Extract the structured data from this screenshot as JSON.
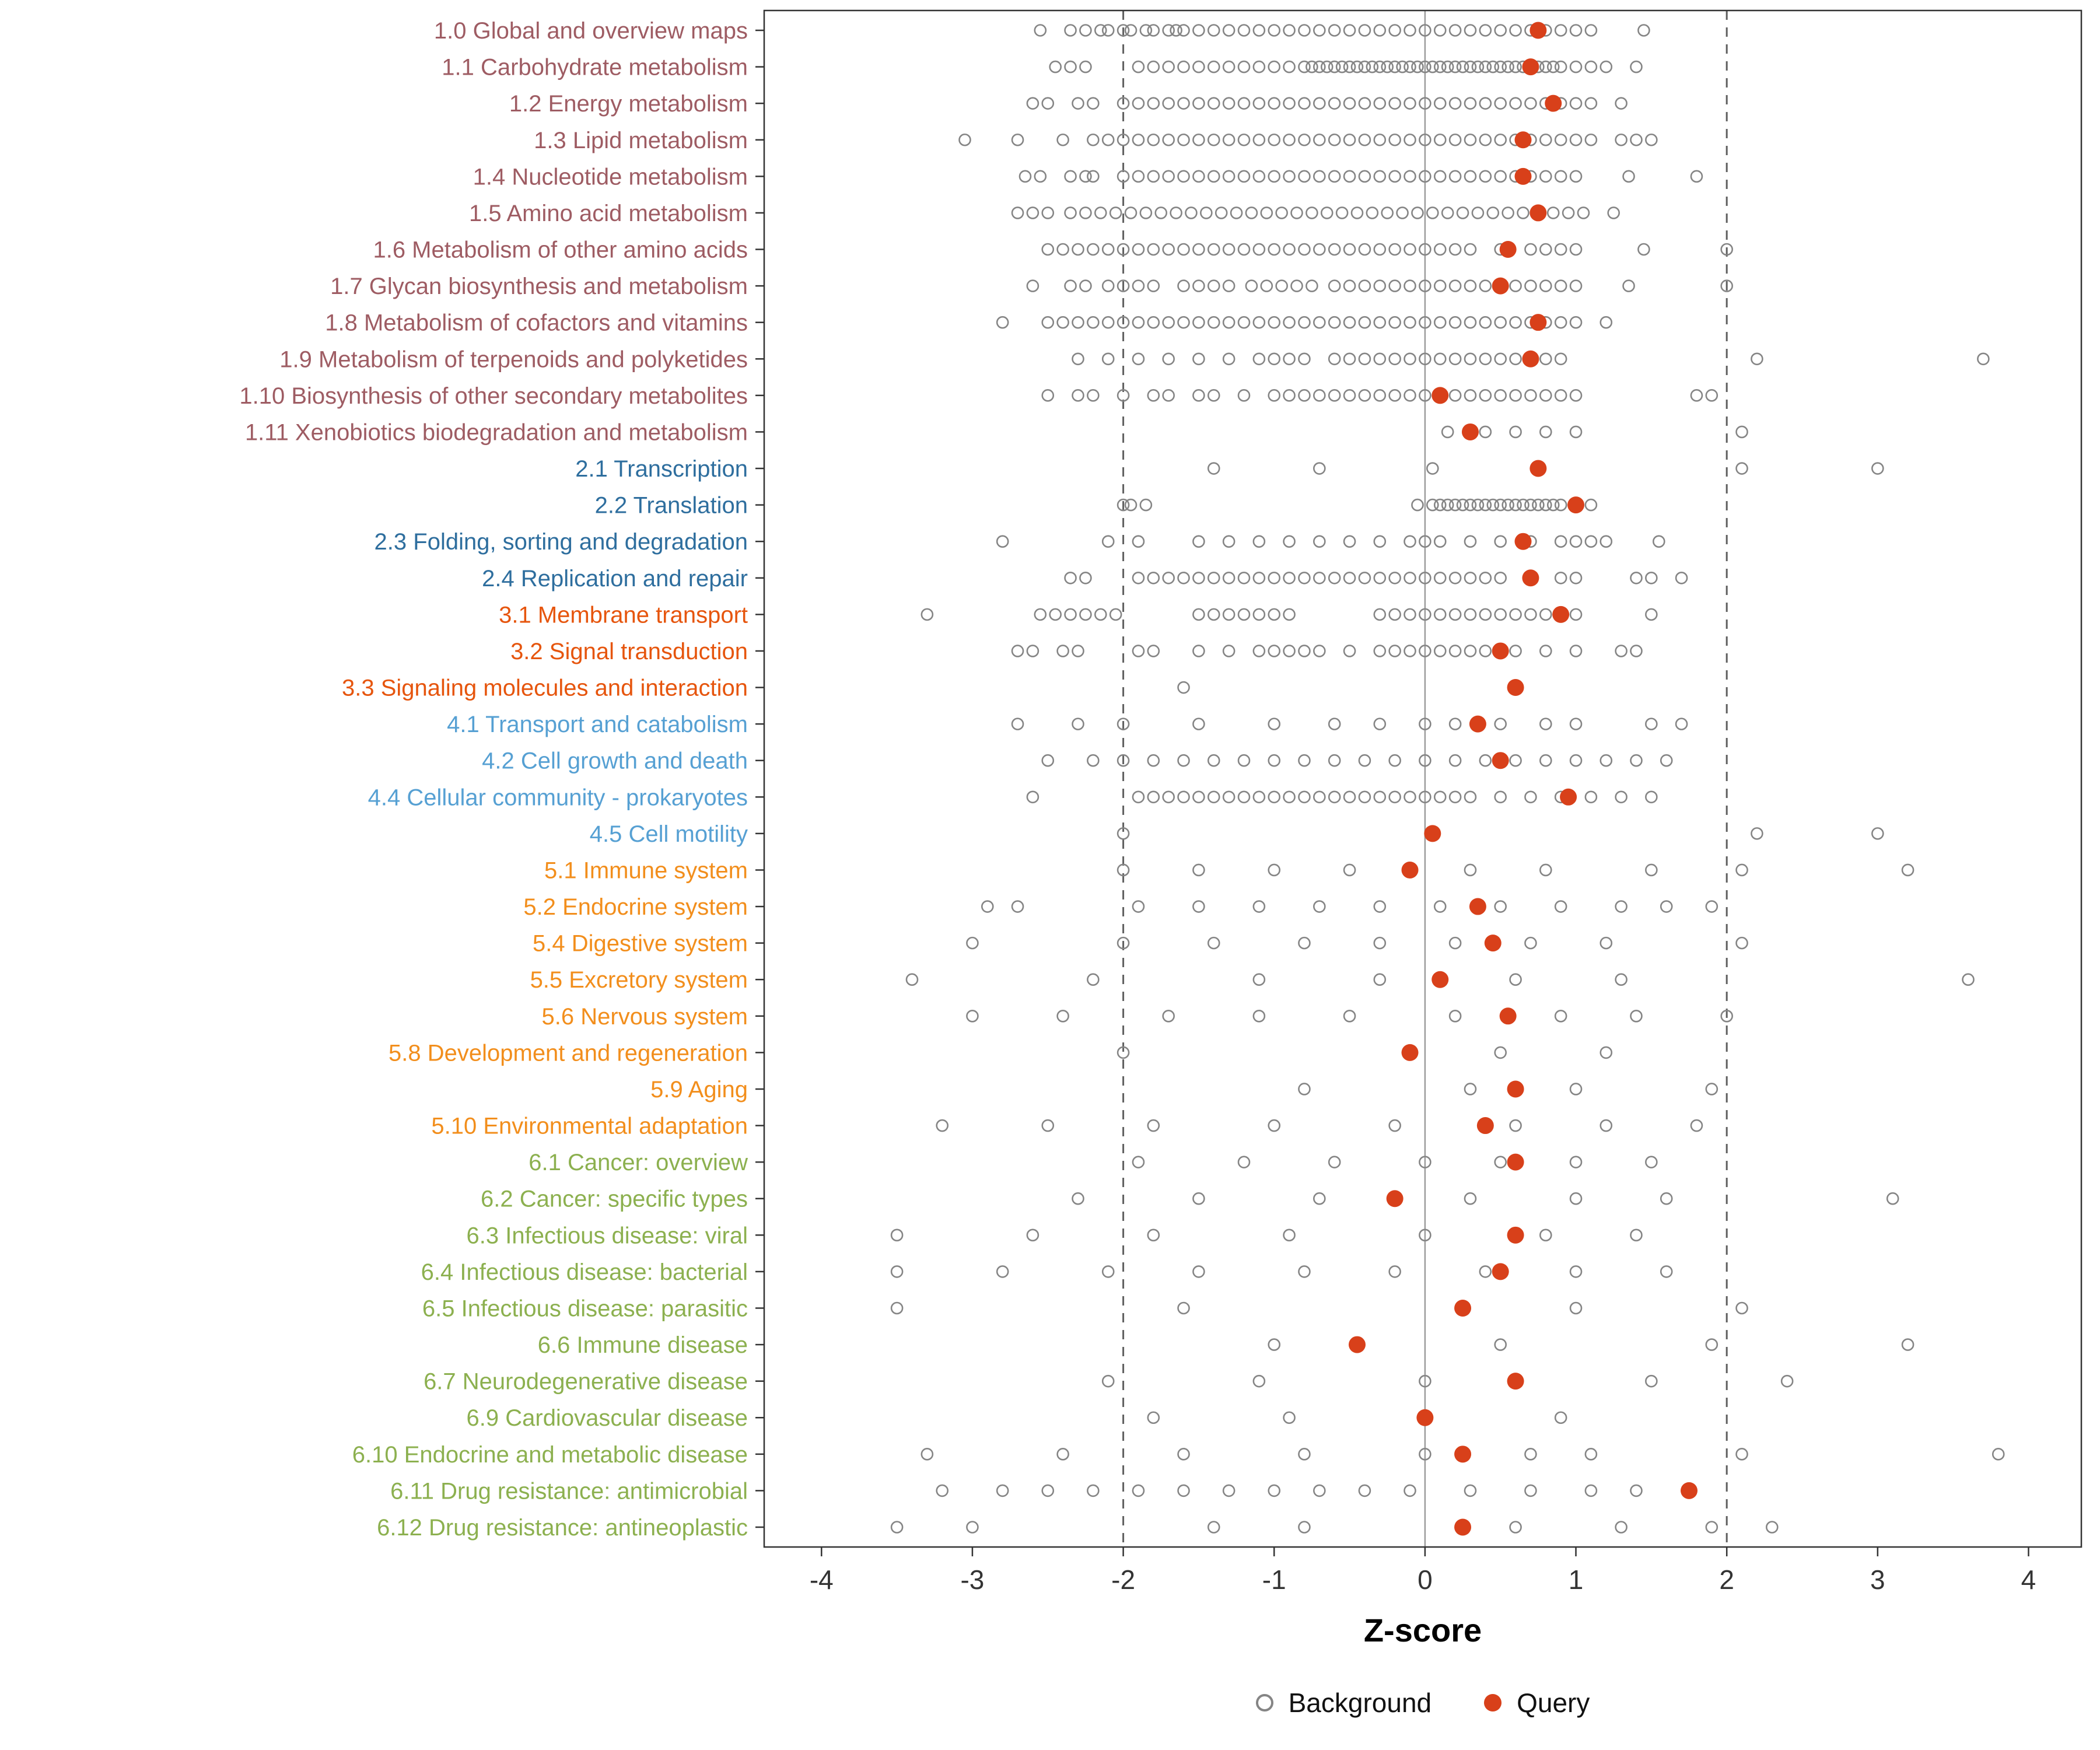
{
  "chart_data": {
    "type": "scatter",
    "orientation": "horizontal-strip",
    "xlabel": "Z-score",
    "x_ticks": [
      -4,
      -3,
      -2,
      -1,
      0,
      1,
      2,
      3,
      4
    ],
    "xlim": [
      -4.38,
      4.35
    ],
    "ref_lines": {
      "solid": 0,
      "dashed": [
        -2,
        2
      ]
    },
    "grid": false,
    "legend_position": "bottom",
    "legend": [
      {
        "label": "Background",
        "type": "open"
      },
      {
        "label": "Query",
        "type": "filled"
      }
    ],
    "colors": {
      "g1": "#9E5C63",
      "g2": "#2E6E9E",
      "g3": "#E6550D",
      "g4": "#56A0D3",
      "g5": "#F28E1C",
      "g6": "#8CB04F",
      "query_point": "#D8401A",
      "background_point": "#858585",
      "zero_line": "#9B9B9B",
      "dashed_line": "#5F5F5F",
      "panel_border": "#333333",
      "axis_text": "#333333"
    },
    "rows": [
      {
        "label": "1.0 Global and overview maps",
        "group": "g1",
        "query": 0.75,
        "background": [
          -2.55,
          -2.35,
          -2.25,
          -2.15,
          -2.1,
          -2.0,
          -1.95,
          -1.85,
          -1.8,
          -1.7,
          -1.65,
          -1.6,
          -1.5,
          -1.4,
          -1.3,
          -1.2,
          -1.1,
          -1.0,
          -0.9,
          -0.8,
          -0.7,
          -0.6,
          -0.5,
          -0.4,
          -0.3,
          -0.2,
          -0.1,
          0,
          0.1,
          0.2,
          0.3,
          0.4,
          0.5,
          0.6,
          0.7,
          0.8,
          0.9,
          1.0,
          1.1,
          1.45
        ]
      },
      {
        "label": "1.1 Carbohydrate metabolism",
        "group": "g1",
        "query": 0.7,
        "background": [
          -2.45,
          -2.35,
          -2.25,
          -1.9,
          -1.8,
          -1.7,
          -1.6,
          -1.5,
          -1.4,
          -1.3,
          -1.2,
          -1.1,
          -1.0,
          -0.9,
          -0.8,
          -0.75,
          -0.7,
          -0.65,
          -0.6,
          -0.55,
          -0.5,
          -0.45,
          -0.4,
          -0.35,
          -0.3,
          -0.25,
          -0.2,
          -0.15,
          -0.1,
          -0.05,
          0,
          0.05,
          0.1,
          0.15,
          0.2,
          0.25,
          0.3,
          0.35,
          0.4,
          0.45,
          0.5,
          0.55,
          0.6,
          0.65,
          0.75,
          0.8,
          0.85,
          0.9,
          1.0,
          1.1,
          1.2,
          1.4
        ]
      },
      {
        "label": "1.2 Energy metabolism",
        "group": "g1",
        "query": 0.85,
        "background": [
          -2.6,
          -2.5,
          -2.3,
          -2.2,
          -2.0,
          -1.9,
          -1.8,
          -1.7,
          -1.6,
          -1.5,
          -1.4,
          -1.3,
          -1.2,
          -1.1,
          -1.0,
          -0.9,
          -0.8,
          -0.7,
          -0.6,
          -0.5,
          -0.4,
          -0.3,
          -0.2,
          -0.1,
          0,
          0.1,
          0.2,
          0.3,
          0.4,
          0.5,
          0.6,
          0.7,
          0.8,
          0.9,
          1.0,
          1.1,
          1.3
        ]
      },
      {
        "label": "1.3 Lipid metabolism",
        "group": "g1",
        "query": 0.65,
        "background": [
          -3.05,
          -2.7,
          -2.4,
          -2.2,
          -2.1,
          -2.0,
          -1.9,
          -1.8,
          -1.7,
          -1.6,
          -1.5,
          -1.4,
          -1.3,
          -1.2,
          -1.1,
          -1.0,
          -0.9,
          -0.8,
          -0.7,
          -0.6,
          -0.5,
          -0.4,
          -0.3,
          -0.2,
          -0.1,
          0,
          0.1,
          0.2,
          0.3,
          0.4,
          0.5,
          0.6,
          0.7,
          0.8,
          0.9,
          1.0,
          1.1,
          1.3,
          1.4,
          1.5
        ]
      },
      {
        "label": "1.4 Nucleotide metabolism",
        "group": "g1",
        "query": 0.65,
        "background": [
          -2.65,
          -2.55,
          -2.35,
          -2.25,
          -2.2,
          -2.0,
          -1.9,
          -1.8,
          -1.7,
          -1.6,
          -1.5,
          -1.4,
          -1.3,
          -1.2,
          -1.1,
          -1.0,
          -0.9,
          -0.8,
          -0.7,
          -0.6,
          -0.5,
          -0.4,
          -0.3,
          -0.2,
          -0.1,
          0,
          0.1,
          0.2,
          0.3,
          0.4,
          0.5,
          0.6,
          0.7,
          0.8,
          0.9,
          1.0,
          1.35,
          1.8
        ]
      },
      {
        "label": "1.5 Amino acid metabolism",
        "group": "g1",
        "query": 0.75,
        "background": [
          -2.7,
          -2.6,
          -2.5,
          -2.35,
          -2.25,
          -2.15,
          -2.05,
          -1.95,
          -1.85,
          -1.75,
          -1.65,
          -1.55,
          -1.45,
          -1.35,
          -1.25,
          -1.15,
          -1.05,
          -0.95,
          -0.85,
          -0.75,
          -0.65,
          -0.55,
          -0.45,
          -0.35,
          -0.25,
          -0.15,
          -0.05,
          0.05,
          0.15,
          0.25,
          0.35,
          0.45,
          0.55,
          0.65,
          0.75,
          0.85,
          0.95,
          1.05,
          1.25
        ]
      },
      {
        "label": "1.6 Metabolism of other amino acids",
        "group": "g1",
        "query": 0.55,
        "background": [
          -2.5,
          -2.4,
          -2.3,
          -2.2,
          -2.1,
          -2.0,
          -1.9,
          -1.8,
          -1.7,
          -1.6,
          -1.5,
          -1.4,
          -1.3,
          -1.2,
          -1.1,
          -1.0,
          -0.9,
          -0.8,
          -0.7,
          -0.6,
          -0.5,
          -0.4,
          -0.3,
          -0.2,
          -0.1,
          0,
          0.1,
          0.2,
          0.3,
          0.5,
          0.7,
          0.8,
          0.9,
          1.0,
          1.45,
          2.0
        ]
      },
      {
        "label": "1.7 Glycan biosynthesis and metabolism",
        "group": "g1",
        "query": 0.5,
        "background": [
          -2.6,
          -2.35,
          -2.25,
          -2.1,
          -2.0,
          -1.9,
          -1.8,
          -1.6,
          -1.5,
          -1.4,
          -1.3,
          -1.15,
          -1.05,
          -0.95,
          -0.85,
          -0.75,
          -0.6,
          -0.5,
          -0.4,
          -0.3,
          -0.2,
          -0.1,
          0,
          0.1,
          0.2,
          0.3,
          0.4,
          0.5,
          0.6,
          0.7,
          0.8,
          0.9,
          1.0,
          1.35,
          2.0
        ]
      },
      {
        "label": "1.8 Metabolism of cofactors and vitamins",
        "group": "g1",
        "query": 0.75,
        "background": [
          -2.8,
          -2.5,
          -2.4,
          -2.3,
          -2.2,
          -2.1,
          -2.0,
          -1.9,
          -1.8,
          -1.7,
          -1.6,
          -1.5,
          -1.4,
          -1.3,
          -1.2,
          -1.1,
          -1.0,
          -0.9,
          -0.8,
          -0.7,
          -0.6,
          -0.5,
          -0.4,
          -0.3,
          -0.2,
          -0.1,
          0,
          0.1,
          0.2,
          0.3,
          0.4,
          0.5,
          0.6,
          0.7,
          0.8,
          0.9,
          1.0,
          1.2
        ]
      },
      {
        "label": "1.9 Metabolism of terpenoids and polyketides",
        "group": "g1",
        "query": 0.7,
        "background": [
          -2.3,
          -2.1,
          -1.9,
          -1.7,
          -1.5,
          -1.3,
          -1.1,
          -1.0,
          -0.9,
          -0.8,
          -0.6,
          -0.5,
          -0.4,
          -0.3,
          -0.2,
          -0.1,
          0,
          0.1,
          0.2,
          0.3,
          0.4,
          0.5,
          0.6,
          0.8,
          0.9,
          2.2,
          3.7
        ]
      },
      {
        "label": "1.10 Biosynthesis of other secondary metabolites",
        "group": "g1",
        "query": 0.1,
        "background": [
          -2.5,
          -2.3,
          -2.2,
          -2.0,
          -1.8,
          -1.7,
          -1.5,
          -1.4,
          -1.2,
          -1.0,
          -0.9,
          -0.8,
          -0.7,
          -0.6,
          -0.5,
          -0.4,
          -0.3,
          -0.2,
          -0.1,
          0,
          0.2,
          0.3,
          0.4,
          0.5,
          0.6,
          0.7,
          0.8,
          0.9,
          1.0,
          1.8,
          1.9
        ]
      },
      {
        "label": "1.11 Xenobiotics biodegradation and metabolism",
        "group": "g1",
        "query": 0.3,
        "background": [
          0.15,
          0.4,
          0.6,
          0.8,
          1.0,
          2.1
        ]
      },
      {
        "label": "2.1 Transcription",
        "group": "g2",
        "query": 0.75,
        "background": [
          -1.4,
          -0.7,
          0.05,
          2.1,
          3.0
        ]
      },
      {
        "label": "2.2 Translation",
        "group": "g2",
        "query": 1.0,
        "background": [
          -2.0,
          -1.95,
          -1.85,
          -0.05,
          0.05,
          0.1,
          0.15,
          0.2,
          0.25,
          0.3,
          0.35,
          0.4,
          0.45,
          0.5,
          0.55,
          0.6,
          0.65,
          0.7,
          0.75,
          0.8,
          0.85,
          0.9,
          1.1
        ]
      },
      {
        "label": "2.3 Folding, sorting and degradation",
        "group": "g2",
        "query": 0.65,
        "background": [
          -2.8,
          -2.1,
          -1.9,
          -1.5,
          -1.3,
          -1.1,
          -0.9,
          -0.7,
          -0.5,
          -0.3,
          -0.1,
          0,
          0.1,
          0.3,
          0.5,
          0.7,
          0.9,
          1.0,
          1.1,
          1.2,
          1.55
        ]
      },
      {
        "label": "2.4 Replication and repair",
        "group": "g2",
        "query": 0.7,
        "background": [
          -2.35,
          -2.25,
          -1.9,
          -1.8,
          -1.7,
          -1.6,
          -1.5,
          -1.4,
          -1.3,
          -1.2,
          -1.1,
          -1.0,
          -0.9,
          -0.8,
          -0.7,
          -0.6,
          -0.5,
          -0.4,
          -0.3,
          -0.2,
          -0.1,
          0,
          0.1,
          0.2,
          0.3,
          0.4,
          0.5,
          0.7,
          0.9,
          1.0,
          1.4,
          1.5,
          1.7
        ]
      },
      {
        "label": "3.1 Membrane transport",
        "group": "g3",
        "query": 0.9,
        "background": [
          -3.3,
          -2.55,
          -2.45,
          -2.35,
          -2.25,
          -2.15,
          -2.05,
          -1.5,
          -1.4,
          -1.3,
          -1.2,
          -1.1,
          -1.0,
          -0.9,
          -0.3,
          -0.2,
          -0.1,
          0,
          0.1,
          0.2,
          0.3,
          0.4,
          0.5,
          0.6,
          0.7,
          0.8,
          1.0,
          1.5
        ]
      },
      {
        "label": "3.2 Signal transduction",
        "group": "g3",
        "query": 0.5,
        "background": [
          -2.7,
          -2.6,
          -2.4,
          -2.3,
          -1.9,
          -1.8,
          -1.5,
          -1.3,
          -1.1,
          -1.0,
          -0.9,
          -0.8,
          -0.7,
          -0.5,
          -0.3,
          -0.2,
          -0.1,
          0,
          0.1,
          0.2,
          0.3,
          0.4,
          0.5,
          0.6,
          0.8,
          1.0,
          1.3,
          1.4
        ]
      },
      {
        "label": "3.3 Signaling molecules and interaction",
        "group": "g3",
        "query": 0.6,
        "background": [
          -1.6
        ]
      },
      {
        "label": "4.1 Transport and catabolism",
        "group": "g4",
        "query": 0.35,
        "background": [
          -2.7,
          -2.3,
          -2.0,
          -1.5,
          -1.0,
          -0.6,
          -0.3,
          0,
          0.2,
          0.5,
          0.8,
          1.0,
          1.5,
          1.7
        ]
      },
      {
        "label": "4.2 Cell growth and death",
        "group": "g4",
        "query": 0.5,
        "background": [
          -2.5,
          -2.2,
          -2.0,
          -1.8,
          -1.6,
          -1.4,
          -1.2,
          -1.0,
          -0.8,
          -0.6,
          -0.4,
          -0.2,
          0,
          0.2,
          0.4,
          0.6,
          0.8,
          1.0,
          1.2,
          1.4,
          1.6
        ]
      },
      {
        "label": "4.4 Cellular community - prokaryotes",
        "group": "g4",
        "query": 0.95,
        "background": [
          -2.6,
          -1.9,
          -1.8,
          -1.7,
          -1.6,
          -1.5,
          -1.4,
          -1.3,
          -1.2,
          -1.1,
          -1.0,
          -0.9,
          -0.8,
          -0.7,
          -0.6,
          -0.5,
          -0.4,
          -0.3,
          -0.2,
          -0.1,
          0,
          0.1,
          0.2,
          0.3,
          0.5,
          0.7,
          0.9,
          1.1,
          1.3,
          1.5
        ]
      },
      {
        "label": "4.5 Cell motility",
        "group": "g4",
        "query": 0.05,
        "background": [
          -2.0,
          2.2,
          3.0
        ]
      },
      {
        "label": "5.1 Immune system",
        "group": "g5",
        "query": -0.1,
        "background": [
          -2.0,
          -1.5,
          -1.0,
          -0.5,
          0.3,
          0.8,
          1.5,
          2.1,
          3.2
        ]
      },
      {
        "label": "5.2 Endocrine system",
        "group": "g5",
        "query": 0.35,
        "background": [
          -2.9,
          -2.7,
          -1.9,
          -1.5,
          -1.1,
          -0.7,
          -0.3,
          0.1,
          0.5,
          0.9,
          1.3,
          1.6,
          1.9
        ]
      },
      {
        "label": "5.4 Digestive system",
        "group": "g5",
        "query": 0.45,
        "background": [
          -3.0,
          -2.0,
          -1.4,
          -0.8,
          -0.3,
          0.2,
          0.7,
          1.2,
          2.1
        ]
      },
      {
        "label": "5.5 Excretory system",
        "group": "g5",
        "query": 0.1,
        "background": [
          -3.4,
          -2.2,
          -1.1,
          -0.3,
          0.6,
          1.3,
          3.6
        ]
      },
      {
        "label": "5.6 Nervous system",
        "group": "g5",
        "query": 0.55,
        "background": [
          -3.0,
          -2.4,
          -1.7,
          -1.1,
          -0.5,
          0.2,
          0.9,
          1.4,
          2.0
        ]
      },
      {
        "label": "5.8 Development and regeneration",
        "group": "g5",
        "query": -0.1,
        "background": [
          -2.0,
          0.5,
          1.2
        ]
      },
      {
        "label": "5.9 Aging",
        "group": "g5",
        "query": 0.6,
        "background": [
          -0.8,
          0.3,
          1.0,
          1.9
        ]
      },
      {
        "label": "5.10 Environmental adaptation",
        "group": "g5",
        "query": 0.4,
        "background": [
          -3.2,
          -2.5,
          -1.8,
          -1.0,
          -0.2,
          0.6,
          1.2,
          1.8
        ]
      },
      {
        "label": "6.1 Cancer: overview",
        "group": "g6",
        "query": 0.6,
        "background": [
          -1.9,
          -1.2,
          -0.6,
          0,
          0.5,
          1.0,
          1.5
        ]
      },
      {
        "label": "6.2 Cancer: specific types",
        "group": "g6",
        "query": -0.2,
        "background": [
          -2.3,
          -1.5,
          -0.7,
          0.3,
          1.0,
          1.6,
          3.1
        ]
      },
      {
        "label": "6.3 Infectious disease: viral",
        "group": "g6",
        "query": 0.6,
        "background": [
          -3.5,
          -2.6,
          -1.8,
          -0.9,
          0,
          0.8,
          1.4
        ]
      },
      {
        "label": "6.4 Infectious disease: bacterial",
        "group": "g6",
        "query": 0.5,
        "background": [
          -3.5,
          -2.8,
          -2.1,
          -1.5,
          -0.8,
          -0.2,
          0.4,
          1.0,
          1.6
        ]
      },
      {
        "label": "6.5 Infectious disease: parasitic",
        "group": "g6",
        "query": 0.25,
        "background": [
          -3.5,
          -1.6,
          1.0,
          2.1
        ]
      },
      {
        "label": "6.6 Immune disease",
        "group": "g6",
        "query": -0.45,
        "background": [
          -1.0,
          0.5,
          1.9,
          3.2
        ]
      },
      {
        "label": "6.7 Neurodegenerative disease",
        "group": "g6",
        "query": 0.6,
        "background": [
          -2.1,
          -1.1,
          0,
          1.5,
          2.4
        ]
      },
      {
        "label": "6.9 Cardiovascular disease",
        "group": "g6",
        "query": 0.0,
        "background": [
          -1.8,
          -0.9,
          0.9
        ]
      },
      {
        "label": "6.10 Endocrine and metabolic disease",
        "group": "g6",
        "query": 0.25,
        "background": [
          -3.3,
          -2.4,
          -1.6,
          -0.8,
          0,
          0.7,
          1.1,
          2.1,
          3.8
        ]
      },
      {
        "label": "6.11 Drug resistance: antimicrobial",
        "group": "g6",
        "query": 1.75,
        "background": [
          -3.2,
          -2.8,
          -2.5,
          -2.2,
          -1.9,
          -1.6,
          -1.3,
          -1.0,
          -0.7,
          -0.4,
          -0.1,
          0.3,
          0.7,
          1.1,
          1.4
        ]
      },
      {
        "label": "6.12 Drug resistance: antineoplastic",
        "group": "g6",
        "query": 0.25,
        "background": [
          -3.5,
          -3.0,
          -1.4,
          -0.8,
          0.6,
          1.3,
          1.9,
          2.3
        ]
      }
    ]
  }
}
